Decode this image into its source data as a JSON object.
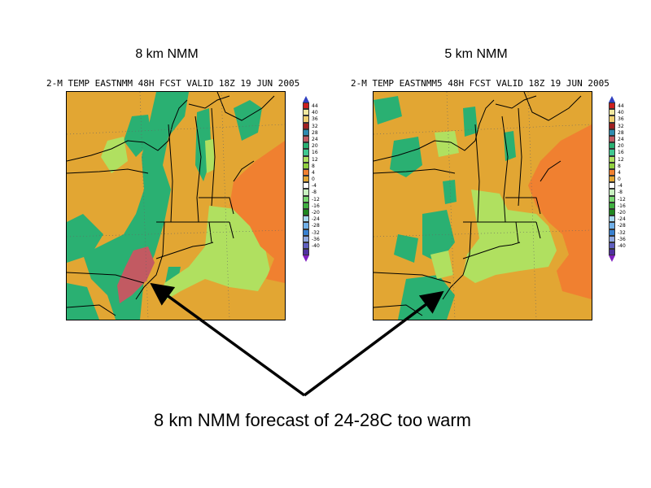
{
  "panels": [
    {
      "title": "8 km NMM",
      "subtitle": "2-M TEMP EASTNMM 48H FCST VALID 18Z 19 JUN 2005"
    },
    {
      "title": "5 km NMM",
      "subtitle": "2-M TEMP EASTNMM5 48H FCST VALID 18Z 19 JUN 2005"
    }
  ],
  "colorbar": {
    "labels": [
      "44",
      "40",
      "36",
      "32",
      "28",
      "24",
      "20",
      "16",
      "12",
      "8",
      "4",
      "0",
      "-4",
      "-8",
      "-12",
      "-16",
      "-20",
      "-24",
      "-28",
      "-32",
      "-36",
      "-40"
    ],
    "colors": [
      "#cc2020",
      "#f0e8a0",
      "#f0d070",
      "#a02020",
      "#2f8cb0",
      "#c25a62",
      "#2ab072",
      "#40c890",
      "#b0e060",
      "#90d040",
      "#f08030",
      "#e2a633",
      "#ffffff",
      "#c8f0c0",
      "#78d870",
      "#40b040",
      "#208820",
      "#a8d8f0",
      "#70b0e8",
      "#3880d0",
      "#90a8e0",
      "#6060c0",
      "#5030a0"
    ],
    "top_color": "#3040c0",
    "bottom_color": "#8020c0"
  },
  "caption": "8 km NMM forecast of 24-28C too warm"
}
